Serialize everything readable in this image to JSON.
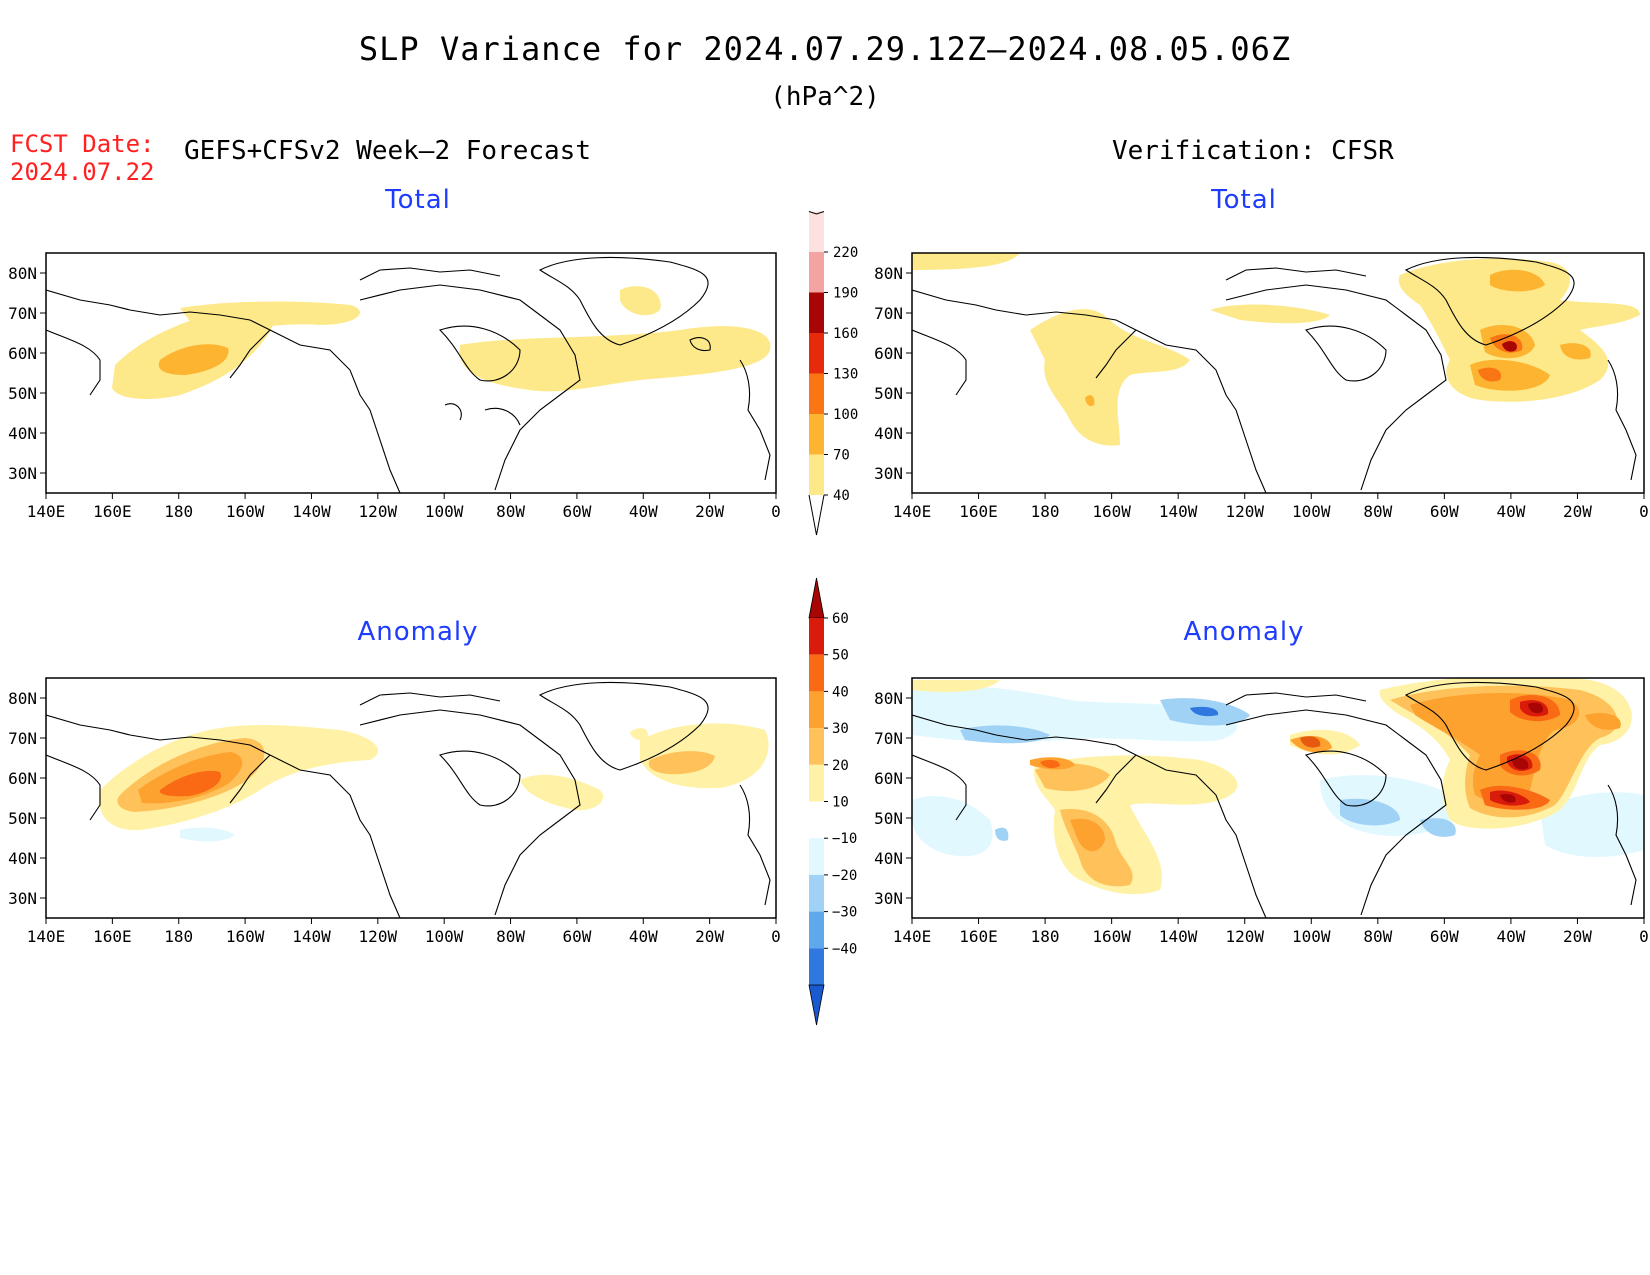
{
  "header": {
    "title": "SLP Variance for 2024.07.29.12Z–2024.08.05.06Z",
    "units": "(hPa^2)",
    "fcst_label": "FCST Date:",
    "fcst_date": "2024.07.22",
    "left_heading": "GEFS+CFSv2 Week–2 Forecast",
    "right_heading": "Verification: CFSR"
  },
  "panels": {
    "top_left_title": "Total",
    "top_right_title": "Total",
    "bottom_left_title": "Anomaly",
    "bottom_right_title": "Anomaly"
  },
  "axes": {
    "lat_labels": [
      "80N",
      "70N",
      "60N",
      "50N",
      "40N",
      "30N"
    ],
    "lon_labels": [
      "140E",
      "160E",
      "180",
      "160W",
      "140W",
      "120W",
      "100W",
      "80W",
      "60W",
      "40W",
      "20W",
      "0"
    ]
  },
  "colorbar_total": {
    "labels": [
      "40",
      "70",
      "100",
      "130",
      "160",
      "190",
      "220"
    ],
    "colors": [
      "#fde98a",
      "#fdb531",
      "#fa7514",
      "#e52b0c",
      "#a80505",
      "#f4a3a3",
      "#fde0e0"
    ]
  },
  "colorbar_anomaly": {
    "labels": [
      "60",
      "50",
      "40",
      "30",
      "20",
      "10",
      "−10",
      "−20",
      "−30",
      "−40"
    ],
    "colors_top_to_bottom": [
      "#a80505",
      "#d81b0b",
      "#fa6a14",
      "#fda22e",
      "#ffc15a",
      "#fff1a6",
      "#ffffff",
      "#e1f8ff",
      "#9fd2f5",
      "#5ea8ec",
      "#2f78e0",
      "#1a5ad0"
    ]
  }
}
